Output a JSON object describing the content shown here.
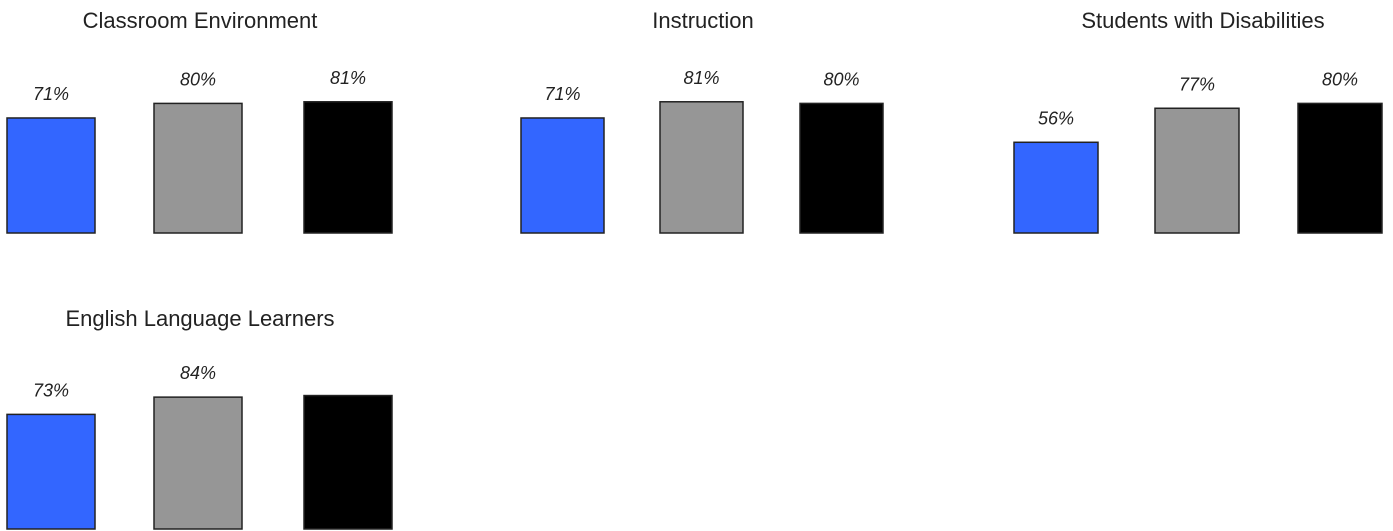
{
  "colors": {
    "bar_1": "#3366ff",
    "bar_2": "#969696",
    "bar_3": "#000000",
    "bar_stroke": "#222222"
  },
  "chart_data": [
    {
      "type": "bar",
      "title": "Classroom Environment",
      "values": [
        71,
        80,
        81
      ],
      "labels": [
        "71%",
        "80%",
        "81%"
      ],
      "ylim": [
        0,
        100
      ]
    },
    {
      "type": "bar",
      "title": "Instruction",
      "values": [
        71,
        81,
        80
      ],
      "labels": [
        "71%",
        "81%",
        "80%"
      ],
      "ylim": [
        0,
        100
      ]
    },
    {
      "type": "bar",
      "title": "Students with Disabilities",
      "values": [
        56,
        77,
        80
      ],
      "labels": [
        "56%",
        "77%",
        "80%"
      ],
      "ylim": [
        0,
        100
      ]
    },
    {
      "type": "bar",
      "title": "English Language Learners",
      "values": [
        73,
        84,
        85
      ],
      "labels": [
        "73%",
        "84%",
        ""
      ],
      "ylim": [
        0,
        100
      ]
    }
  ]
}
